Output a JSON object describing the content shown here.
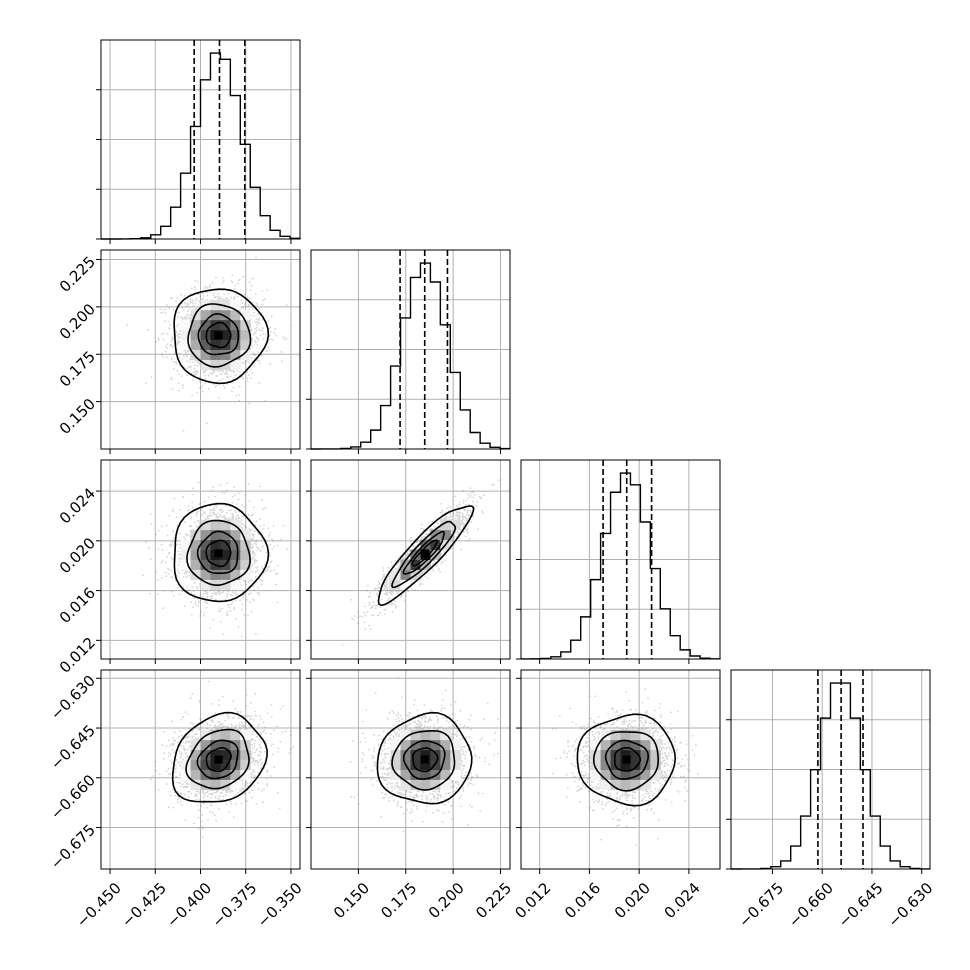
{
  "chart_data": {
    "type": "corner",
    "parameters": [
      {
        "range": [
          -0.455,
          -0.345
        ],
        "mean": -0.39,
        "sd": 0.0125,
        "quantiles": [
          -0.4035,
          -0.3895,
          -0.3755
        ],
        "ticks": [
          -0.45,
          -0.425,
          -0.4,
          -0.375,
          -0.35
        ],
        "tick_labels": [
          "−0.450",
          "−0.425",
          "−0.400",
          "−0.375",
          "−0.350"
        ]
      },
      {
        "range": [
          0.125,
          0.23
        ],
        "mean": 0.185,
        "sd": 0.012,
        "quantiles": [
          0.172,
          0.185,
          0.197
        ],
        "ticks": [
          0.15,
          0.175,
          0.2,
          0.225
        ],
        "tick_labels": [
          "0.150",
          "0.175",
          "0.200",
          "0.225"
        ]
      },
      {
        "range": [
          0.0105,
          0.0265
        ],
        "mean": 0.019,
        "sd": 0.0019,
        "quantiles": [
          0.0171,
          0.019,
          0.021
        ],
        "ticks": [
          0.012,
          0.016,
          0.02,
          0.024
        ],
        "tick_labels": [
          "0.012",
          "0.016",
          "0.020",
          "0.024"
        ]
      },
      {
        "range": [
          -0.6875,
          -0.6275
        ],
        "mean": -0.6545,
        "sd": 0.0065,
        "quantiles": [
          -0.6613,
          -0.6543,
          -0.6477
        ],
        "ticks": [
          -0.675,
          -0.66,
          -0.645,
          -0.63
        ],
        "tick_labels": [
          "−0.675",
          "−0.660",
          "−0.645",
          "−0.630"
        ]
      }
    ],
    "correlations": [
      [
        1,
        0.0,
        0.0,
        0.2
      ],
      [
        0.0,
        1,
        0.9,
        0.05
      ],
      [
        0.0,
        0.9,
        1,
        0.0
      ],
      [
        0.2,
        0.05,
        0.0,
        1
      ]
    ],
    "histogram_bins": 20,
    "grid": true,
    "x_labels": [],
    "y_labels": []
  }
}
